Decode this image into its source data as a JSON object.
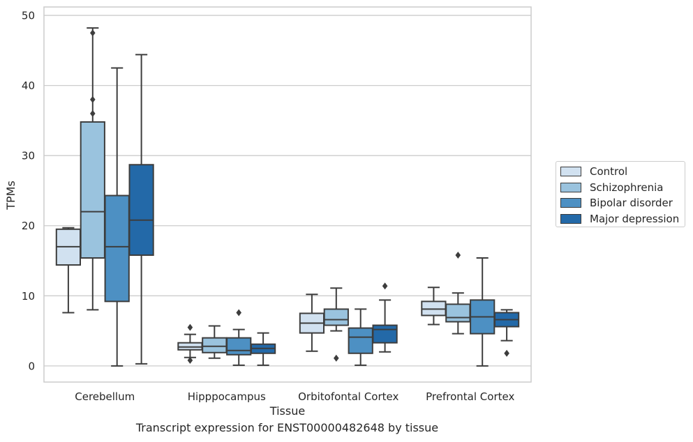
{
  "chart_data": {
    "type": "boxplot",
    "xlabel": "Tissue",
    "ylabel": "TPMs",
    "ylim": [
      -2.3,
      51.2
    ],
    "yticks": [
      0,
      10,
      20,
      30,
      40,
      50
    ],
    "grid": "horizontal",
    "legend_position": "right",
    "categories": [
      "Cerebellum",
      "Hipppocampus",
      "Orbitofontal Cortex",
      "Prefrontal Cortex"
    ],
    "series": [
      {
        "name": "Control",
        "color": "#d1e1f0",
        "boxes": [
          {
            "whisker_low": 7.6,
            "q1": 14.4,
            "median": 17.0,
            "q3": 19.5,
            "whisker_high": 19.7,
            "outliers": []
          },
          {
            "whisker_low": 1.2,
            "q1": 2.3,
            "median": 2.7,
            "q3": 3.3,
            "whisker_high": 4.5,
            "outliers": [
              5.5,
              0.8
            ]
          },
          {
            "whisker_low": 2.1,
            "q1": 4.7,
            "median": 6.1,
            "q3": 7.5,
            "whisker_high": 10.2,
            "outliers": []
          },
          {
            "whisker_low": 5.9,
            "q1": 7.2,
            "median": 8.1,
            "q3": 9.2,
            "whisker_high": 11.2,
            "outliers": []
          }
        ]
      },
      {
        "name": "Schizophrenia",
        "color": "#9ac3de",
        "boxes": [
          {
            "whisker_low": 8.0,
            "q1": 15.4,
            "median": 22.0,
            "q3": 34.8,
            "whisker_high": 48.2,
            "outliers": [
              47.5,
              38.0,
              36.0
            ]
          },
          {
            "whisker_low": 1.1,
            "q1": 1.9,
            "median": 2.8,
            "q3": 4.0,
            "whisker_high": 5.7,
            "outliers": []
          },
          {
            "whisker_low": 5.0,
            "q1": 5.8,
            "median": 6.6,
            "q3": 8.1,
            "whisker_high": 11.1,
            "outliers": [
              1.1
            ]
          },
          {
            "whisker_low": 4.6,
            "q1": 6.3,
            "median": 6.9,
            "q3": 8.8,
            "whisker_high": 10.4,
            "outliers": [
              15.8
            ]
          }
        ]
      },
      {
        "name": "Bipolar disorder",
        "color": "#4d90c3",
        "boxes": [
          {
            "whisker_low": 0.0,
            "q1": 9.2,
            "median": 17.0,
            "q3": 24.3,
            "whisker_high": 42.5,
            "outliers": []
          },
          {
            "whisker_low": 0.1,
            "q1": 1.6,
            "median": 2.2,
            "q3": 4.0,
            "whisker_high": 5.2,
            "outliers": [
              7.6
            ]
          },
          {
            "whisker_low": 0.1,
            "q1": 1.8,
            "median": 4.1,
            "q3": 5.4,
            "whisker_high": 8.1,
            "outliers": []
          },
          {
            "whisker_low": 0.0,
            "q1": 4.6,
            "median": 7.0,
            "q3": 9.4,
            "whisker_high": 15.4,
            "outliers": []
          }
        ]
      },
      {
        "name": "Major depression",
        "color": "#2369a8",
        "boxes": [
          {
            "whisker_low": 0.3,
            "q1": 15.8,
            "median": 20.8,
            "q3": 28.7,
            "whisker_high": 44.4,
            "outliers": []
          },
          {
            "whisker_low": 0.1,
            "q1": 1.8,
            "median": 2.5,
            "q3": 3.1,
            "whisker_high": 4.7,
            "outliers": []
          },
          {
            "whisker_low": 2.0,
            "q1": 3.3,
            "median": 5.2,
            "q3": 5.8,
            "whisker_high": 9.4,
            "outliers": [
              11.4
            ]
          },
          {
            "whisker_low": 3.6,
            "q1": 5.6,
            "median": 6.6,
            "q3": 7.6,
            "whisker_high": 8.0,
            "outliers": [
              1.8
            ]
          }
        ]
      }
    ]
  },
  "caption": "Transcript expression for ENST00000482648 by tissue"
}
